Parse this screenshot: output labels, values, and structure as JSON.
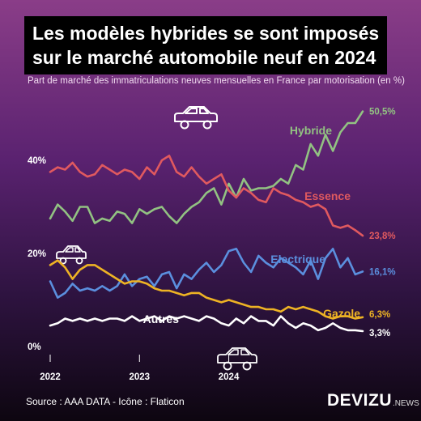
{
  "title": {
    "line1": "Les modèles hybrides se sont imposés",
    "line2": "sur le marché automobile neuf en 2024"
  },
  "subtitle": "Part de marché des immatriculations neuves mensuelles en France par motorisation (en %)",
  "source": "Source : AAA DATA - Icône : Flaticon",
  "brand": {
    "main": "DEVIZU",
    "sub": ".NEWS"
  },
  "icons": [
    "car-icon",
    "car-icon",
    "car-icon"
  ],
  "chart_data": {
    "type": "line",
    "title": "Les modèles hybrides se sont imposés sur le marché automobile neuf en 2024",
    "ylim": [
      0,
      52
    ],
    "yticks": [
      {
        "value": 0,
        "label": "0%"
      },
      {
        "value": 20,
        "label": "20%"
      },
      {
        "value": 40,
        "label": "40%"
      }
    ],
    "xlim": [
      0,
      35
    ],
    "xticks": [
      {
        "index": 0,
        "label": "2022"
      },
      {
        "index": 12,
        "label": "2023"
      },
      {
        "index": 24,
        "label": "2024"
      }
    ],
    "grid": false,
    "legend": "direct labels",
    "series": [
      {
        "name": "Hybride",
        "color": "#92c282",
        "end_label": "50,5%",
        "values": [
          27.5,
          30.5,
          29.0,
          27.0,
          30.0,
          30.0,
          26.5,
          27.5,
          27.0,
          29.0,
          28.5,
          26.5,
          29.5,
          28.5,
          29.5,
          30.0,
          28.0,
          26.5,
          28.5,
          30.0,
          31.0,
          33.0,
          34.0,
          30.5,
          35.0,
          32.0,
          36.0,
          33.5,
          34.0,
          34.0,
          34.5,
          36.0,
          35.0,
          39.0,
          38.0,
          43.5,
          41.0,
          45.5,
          42.0,
          46.0,
          48.0,
          48.0,
          50.5
        ]
      },
      {
        "name": "Essence",
        "color": "#e0595f",
        "end_label": "23,8%",
        "values": [
          37.5,
          38.5,
          38.0,
          39.5,
          37.5,
          36.5,
          37.0,
          39.0,
          38.0,
          37.0,
          38.0,
          37.5,
          36.0,
          38.5,
          37.0,
          40.0,
          41.0,
          37.5,
          36.5,
          38.5,
          36.5,
          35.0,
          36.0,
          37.0,
          33.5,
          32.0,
          34.0,
          33.0,
          31.5,
          31.0,
          34.0,
          33.0,
          32.5,
          31.5,
          31.0,
          30.0,
          30.5,
          29.5,
          26.0,
          25.5,
          26.0,
          25.0,
          23.8
        ]
      },
      {
        "name": "Electrique",
        "color": "#5b8fde",
        "end_label": "16,1%",
        "values": [
          14.0,
          10.5,
          11.5,
          13.5,
          12.0,
          12.5,
          12.0,
          13.0,
          12.0,
          13.0,
          15.5,
          13.0,
          14.5,
          15.0,
          13.0,
          15.5,
          16.0,
          12.5,
          15.5,
          14.5,
          16.5,
          18.0,
          16.0,
          17.5,
          20.5,
          21.0,
          18.0,
          16.0,
          19.5,
          18.0,
          17.0,
          19.0,
          18.0,
          17.0,
          15.5,
          18.5,
          14.5,
          19.0,
          21.0,
          17.0,
          19.0,
          15.5,
          16.1
        ]
      },
      {
        "name": "Gazole",
        "color": "#eeb324",
        "end_label": "6,3%",
        "values": [
          17.5,
          18.5,
          17.0,
          14.5,
          16.5,
          17.5,
          17.5,
          16.5,
          15.5,
          14.5,
          13.5,
          14.0,
          14.0,
          13.5,
          12.5,
          12.0,
          12.0,
          11.5,
          11.0,
          11.5,
          11.5,
          10.5,
          10.0,
          9.5,
          10.0,
          9.5,
          9.0,
          8.5,
          8.5,
          8.0,
          8.0,
          7.5,
          8.5,
          8.0,
          8.5,
          8.0,
          7.5,
          6.5,
          6.0,
          6.5,
          6.5,
          6.0,
          6.3
        ]
      },
      {
        "name": "Autres",
        "color": "#ffffff",
        "end_label": "3,3%",
        "values": [
          4.5,
          5.0,
          6.0,
          5.5,
          6.0,
          5.5,
          6.0,
          5.5,
          6.0,
          6.0,
          5.5,
          6.5,
          5.5,
          6.0,
          6.5,
          5.5,
          6.5,
          6.0,
          6.5,
          6.0,
          5.5,
          6.5,
          6.0,
          5.0,
          4.5,
          6.0,
          5.0,
          6.5,
          5.5,
          5.5,
          4.5,
          6.5,
          5.0,
          4.0,
          5.0,
          4.5,
          3.5,
          4.0,
          5.0,
          4.0,
          3.5,
          3.5,
          3.3
        ]
      }
    ]
  }
}
